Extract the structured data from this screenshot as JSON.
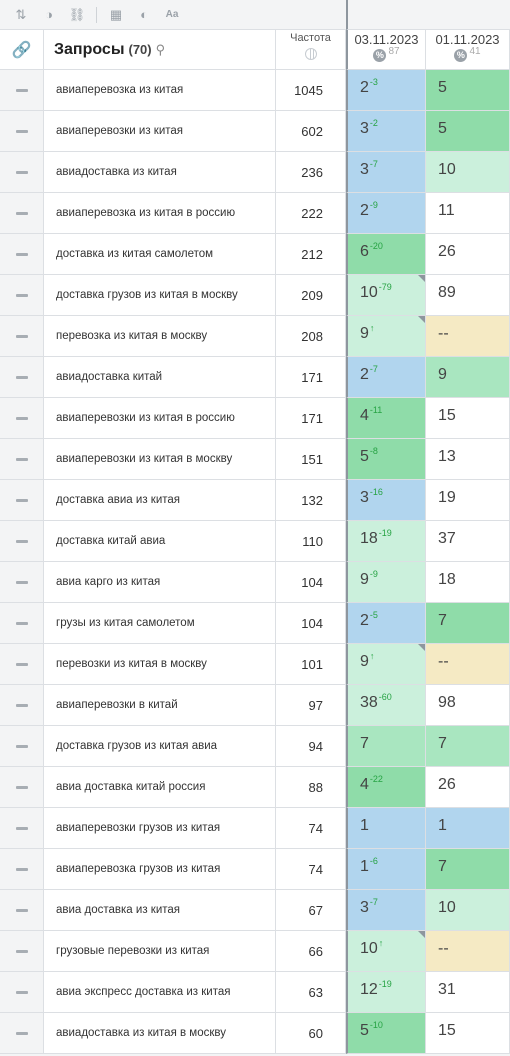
{
  "toolbar": {
    "icons": [
      "sort-icon",
      "toggle-icon",
      "link-icon",
      "table-icon",
      "contrast-icon",
      "font-icon"
    ]
  },
  "header": {
    "title": "Запросы",
    "count": "(70)",
    "freq_label": "Частота",
    "date1": "03.11.2023",
    "date1_count": "87",
    "date2": "01.11.2023",
    "date2_count": "41",
    "pct_symbol": "%"
  },
  "colors": {
    "top": "#b1d5ee",
    "green_dark": "#8fdca9",
    "green_mid": "#a9e6c0",
    "green_light": "#cbf0dc",
    "none": "#f5eac4",
    "diff_green": "#27a344",
    "divider": "#8e969e"
  },
  "rows": [
    {
      "query": "авиаперевозка из китая",
      "freq": "1045",
      "p1": "2",
      "d1": "-3",
      "b1": "top",
      "p2": "5",
      "b2": "g1"
    },
    {
      "query": "авиаперевозки из китая",
      "freq": "602",
      "p1": "3",
      "d1": "-2",
      "b1": "top",
      "p2": "5",
      "b2": "g1"
    },
    {
      "query": "авиадоставка из китая",
      "freq": "236",
      "p1": "3",
      "d1": "-7",
      "b1": "top",
      "p2": "10",
      "b2": "g3"
    },
    {
      "query": "авиаперевозка из китая в россию",
      "freq": "222",
      "p1": "2",
      "d1": "-9",
      "b1": "top",
      "p2": "11",
      "b2": "white"
    },
    {
      "query": "доставка из китая самолетом",
      "freq": "212",
      "p1": "6",
      "d1": "-20",
      "b1": "g1",
      "p2": "26",
      "b2": "white"
    },
    {
      "query": "доставка грузов из китая в москву",
      "freq": "209",
      "p1": "10",
      "d1": "-79",
      "b1": "g3",
      "p2": "89",
      "b2": "white",
      "corner": true
    },
    {
      "query": "перевозка из китая в москву",
      "freq": "208",
      "p1": "9",
      "d1": "↑",
      "b1": "g3",
      "p2": "--",
      "b2": "none",
      "corner": true
    },
    {
      "query": "авиадоставка китай",
      "freq": "171",
      "p1": "2",
      "d1": "-7",
      "b1": "top",
      "p2": "9",
      "b2": "g2"
    },
    {
      "query": "авиаперевозки из китая в россию",
      "freq": "171",
      "p1": "4",
      "d1": "-11",
      "b1": "g1",
      "p2": "15",
      "b2": "white"
    },
    {
      "query": "авиаперевозки из китая в москву",
      "freq": "151",
      "p1": "5",
      "d1": "-8",
      "b1": "g1",
      "p2": "13",
      "b2": "white"
    },
    {
      "query": "доставка авиа из китая",
      "freq": "132",
      "p1": "3",
      "d1": "-16",
      "b1": "top",
      "p2": "19",
      "b2": "white"
    },
    {
      "query": "доставка китай авиа",
      "freq": "110",
      "p1": "18",
      "d1": "-19",
      "b1": "g3",
      "p2": "37",
      "b2": "white"
    },
    {
      "query": "авиа карго из китая",
      "freq": "104",
      "p1": "9",
      "d1": "-9",
      "b1": "g3",
      "p2": "18",
      "b2": "white"
    },
    {
      "query": "грузы из китая самолетом",
      "freq": "104",
      "p1": "2",
      "d1": "-5",
      "b1": "top",
      "p2": "7",
      "b2": "g1"
    },
    {
      "query": "перевозки из китая в москву",
      "freq": "101",
      "p1": "9",
      "d1": "↑",
      "b1": "g3",
      "p2": "--",
      "b2": "none",
      "corner": true
    },
    {
      "query": "авиаперевозки в китай",
      "freq": "97",
      "p1": "38",
      "d1": "-60",
      "b1": "g3",
      "p2": "98",
      "b2": "white"
    },
    {
      "query": "доставка грузов из китая авиа",
      "freq": "94",
      "p1": "7",
      "d1": "",
      "b1": "g2",
      "p2": "7",
      "b2": "g2"
    },
    {
      "query": "авиа доставка китай россия",
      "freq": "88",
      "p1": "4",
      "d1": "-22",
      "b1": "g1",
      "p2": "26",
      "b2": "white"
    },
    {
      "query": "авиаперевозки грузов из китая",
      "freq": "74",
      "p1": "1",
      "d1": "",
      "b1": "top",
      "p2": "1",
      "b2": "top"
    },
    {
      "query": "авиаперевозка грузов из китая",
      "freq": "74",
      "p1": "1",
      "d1": "-6",
      "b1": "top",
      "p2": "7",
      "b2": "g1"
    },
    {
      "query": "авиа доставка из китая",
      "freq": "67",
      "p1": "3",
      "d1": "-7",
      "b1": "top",
      "p2": "10",
      "b2": "g3"
    },
    {
      "query": "грузовые перевозки из китая",
      "freq": "66",
      "p1": "10",
      "d1": "↑",
      "b1": "g3",
      "p2": "--",
      "b2": "none",
      "corner": true
    },
    {
      "query": "авиа экспресс доставка из китая",
      "freq": "63",
      "p1": "12",
      "d1": "-19",
      "b1": "g3",
      "p2": "31",
      "b2": "white"
    },
    {
      "query": "авиадоставка из китая в москву",
      "freq": "60",
      "p1": "5",
      "d1": "-10",
      "b1": "g1",
      "p2": "15",
      "b2": "white"
    }
  ]
}
